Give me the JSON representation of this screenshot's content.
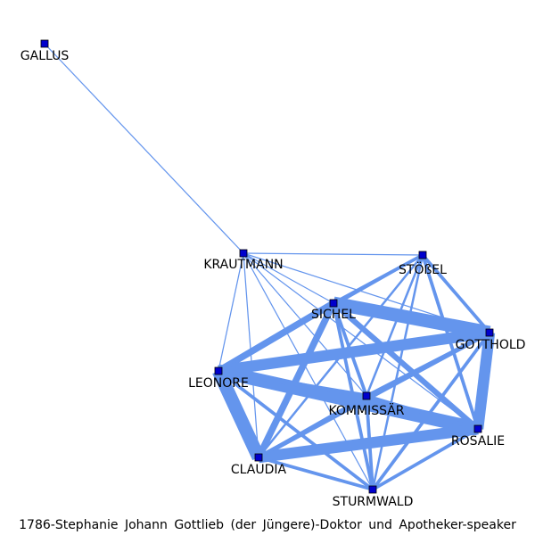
{
  "graph": {
    "edge_color": "#6495ed",
    "node_color": "#0000cd",
    "node_border_color": "#000000",
    "nodes": [
      {
        "id": "GALLUS",
        "label": "GALLUS"
      },
      {
        "id": "KRAUTMANN",
        "label": "KRAUTMANN"
      },
      {
        "id": "STOESSEL",
        "label": "STÖßEL"
      },
      {
        "id": "SICHEL",
        "label": "SICHEL"
      },
      {
        "id": "GOTTHOLD",
        "label": "GOTTHOLD"
      },
      {
        "id": "LEONORE",
        "label": "LEONORE"
      },
      {
        "id": "KOMMISSAR",
        "label": "KOMMISSÄR"
      },
      {
        "id": "ROSALIE",
        "label": "ROSALIE"
      },
      {
        "id": "CLAUDIA",
        "label": "CLAUDIA"
      },
      {
        "id": "STURMWALD",
        "label": "STURMWALD"
      }
    ],
    "edges": [
      {
        "source": "GALLUS",
        "target": "KRAUTMANN",
        "weight": 1
      },
      {
        "source": "KRAUTMANN",
        "target": "STOESSEL",
        "weight": 1
      },
      {
        "source": "KRAUTMANN",
        "target": "SICHEL",
        "weight": 1
      },
      {
        "source": "KRAUTMANN",
        "target": "GOTTHOLD",
        "weight": 1
      },
      {
        "source": "KRAUTMANN",
        "target": "LEONORE",
        "weight": 1
      },
      {
        "source": "KRAUTMANN",
        "target": "KOMMISSAR",
        "weight": 1
      },
      {
        "source": "KRAUTMANN",
        "target": "ROSALIE",
        "weight": 1
      },
      {
        "source": "KRAUTMANN",
        "target": "CLAUDIA",
        "weight": 1
      },
      {
        "source": "KRAUTMANN",
        "target": "STURMWALD",
        "weight": 1
      },
      {
        "source": "STOESSEL",
        "target": "SICHEL",
        "weight": 3
      },
      {
        "source": "STOESSEL",
        "target": "GOTTHOLD",
        "weight": 3
      },
      {
        "source": "STOESSEL",
        "target": "ROSALIE",
        "weight": 3
      },
      {
        "source": "STOESSEL",
        "target": "LEONORE",
        "weight": 2
      },
      {
        "source": "STOESSEL",
        "target": "KOMMISSAR",
        "weight": 2
      },
      {
        "source": "STOESSEL",
        "target": "CLAUDIA",
        "weight": 2
      },
      {
        "source": "STOESSEL",
        "target": "STURMWALD",
        "weight": 2
      },
      {
        "source": "SICHEL",
        "target": "GOTTHOLD",
        "weight": 12
      },
      {
        "source": "SICHEL",
        "target": "ROSALIE",
        "weight": 5
      },
      {
        "source": "SICHEL",
        "target": "LEONORE",
        "weight": 6
      },
      {
        "source": "SICHEL",
        "target": "CLAUDIA",
        "weight": 6
      },
      {
        "source": "SICHEL",
        "target": "KOMMISSAR",
        "weight": 3
      },
      {
        "source": "SICHEL",
        "target": "STURMWALD",
        "weight": 3
      },
      {
        "source": "GOTTHOLD",
        "target": "LEONORE",
        "weight": 10
      },
      {
        "source": "GOTTHOLD",
        "target": "ROSALIE",
        "weight": 10
      },
      {
        "source": "GOTTHOLD",
        "target": "CLAUDIA",
        "weight": 4
      },
      {
        "source": "GOTTHOLD",
        "target": "KOMMISSAR",
        "weight": 3
      },
      {
        "source": "GOTTHOLD",
        "target": "STURMWALD",
        "weight": 3
      },
      {
        "source": "LEONORE",
        "target": "ROSALIE",
        "weight": 12
      },
      {
        "source": "LEONORE",
        "target": "CLAUDIA",
        "weight": 12
      },
      {
        "source": "LEONORE",
        "target": "KOMMISSAR",
        "weight": 4
      },
      {
        "source": "LEONORE",
        "target": "STURMWALD",
        "weight": 3
      },
      {
        "source": "CLAUDIA",
        "target": "ROSALIE",
        "weight": 10
      },
      {
        "source": "CLAUDIA",
        "target": "KOMMISSAR",
        "weight": 3
      },
      {
        "source": "CLAUDIA",
        "target": "STURMWALD",
        "weight": 3
      },
      {
        "source": "KOMMISSAR",
        "target": "ROSALIE",
        "weight": 3
      },
      {
        "source": "KOMMISSAR",
        "target": "STURMWALD",
        "weight": 3
      },
      {
        "source": "ROSALIE",
        "target": "STURMWALD",
        "weight": 3
      }
    ]
  },
  "caption": "1786-Stephanie Johann Gottlieb (der Jüngere)-Doktor und Apotheker-speaker"
}
